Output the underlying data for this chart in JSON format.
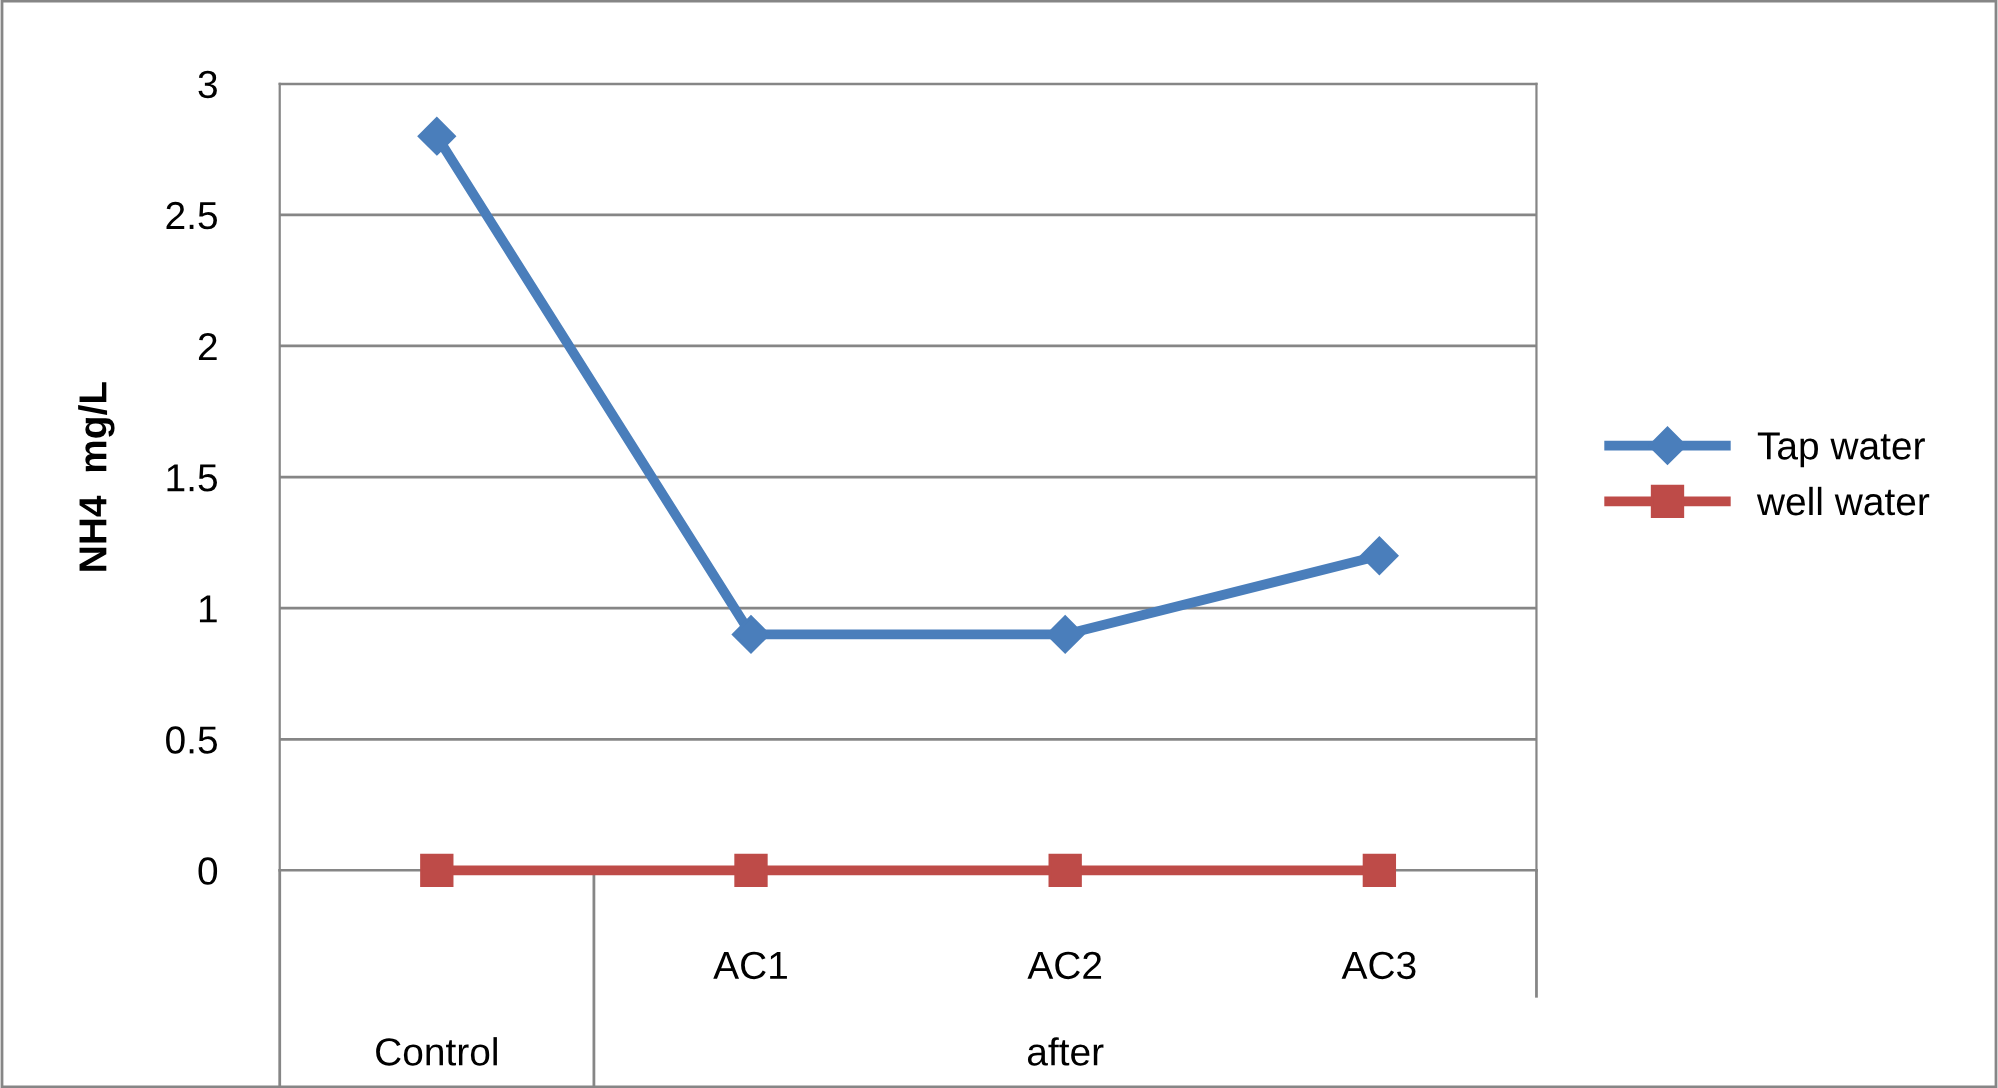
{
  "chart_data": {
    "type": "line",
    "ylabel": "NH4  mg/L",
    "categories": [
      null,
      "AC1",
      "AC2",
      "AC3"
    ],
    "annotations": [
      "Control",
      "after"
    ],
    "series": [
      {
        "name": "Tap water",
        "color": "#4a7ebb",
        "marker": "diamond",
        "values": [
          2.8,
          0.9,
          0.9,
          1.2
        ]
      },
      {
        "name": "well water",
        "color": "#be4b48",
        "marker": "square",
        "values": [
          0,
          0,
          0,
          0
        ]
      }
    ],
    "ylim": [
      0,
      3
    ],
    "yticks": [
      0,
      0.5,
      1,
      1.5,
      2,
      2.5,
      3
    ],
    "grid": "y",
    "legend": "right"
  }
}
